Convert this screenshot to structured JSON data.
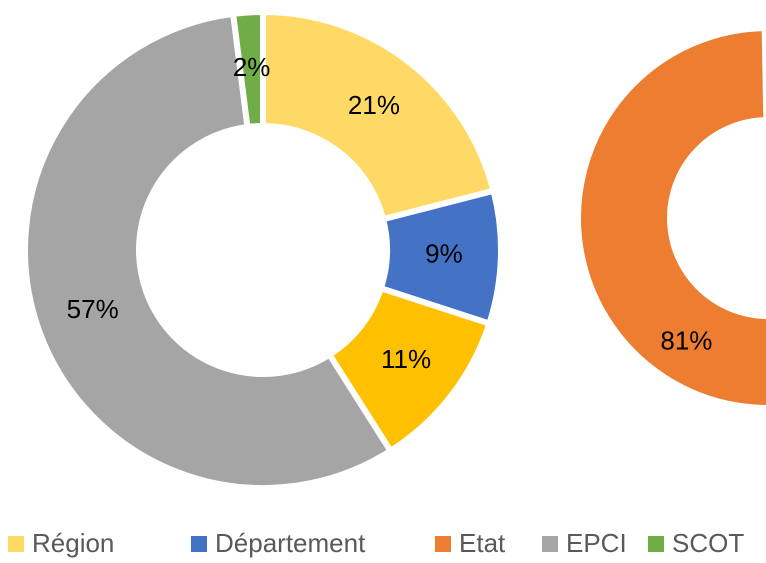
{
  "chart_data": [
    {
      "type": "donut",
      "values": [
        21,
        9,
        11,
        57,
        2
      ],
      "value_labels": [
        "21%",
        "9%",
        "11%",
        "57%",
        "2%"
      ],
      "colors": [
        "#ffd966",
        "#4472c4",
        "#ffc000",
        "#a5a5a5",
        "#70ad47"
      ]
    },
    {
      "type": "donut",
      "values": [
        81
      ],
      "value_labels": [
        "81%"
      ],
      "colors": [
        "#ed7d31"
      ]
    }
  ],
  "legend": {
    "items": [
      {
        "name": "Région",
        "color": "#ffd966"
      },
      {
        "name": "Département",
        "color": "#4472c4"
      },
      {
        "name": "Etat",
        "color": "#ed7d31"
      },
      {
        "name": "EPCI",
        "color": "#a5a5a5"
      },
      {
        "name": "SCOT",
        "color": "#70ad47"
      }
    ]
  }
}
